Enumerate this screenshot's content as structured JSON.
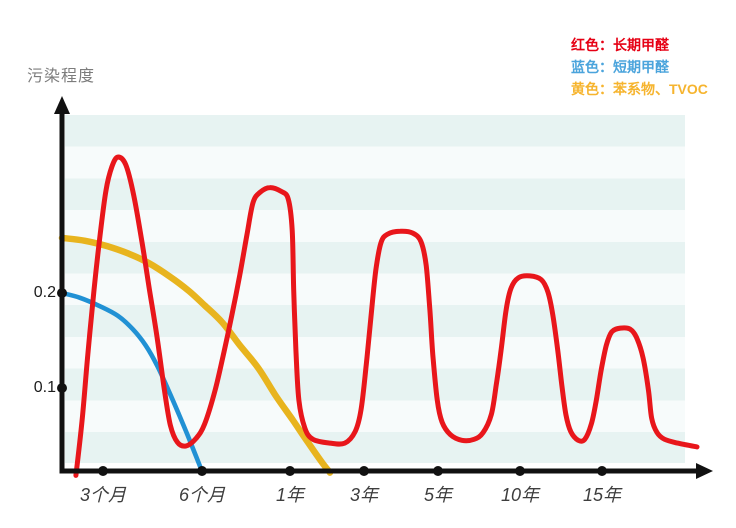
{
  "legend": {
    "items": [
      {
        "name": "long-term-formaldehyde",
        "label": "红色：长期甲醛",
        "color": "#e60014"
      },
      {
        "name": "short-term-formaldehyde",
        "label": "蓝色：短期甲醛",
        "color": "#4ba4dc"
      },
      {
        "name": "benzene-tvoc",
        "label": "黄色：苯系物、TVOC",
        "color": "#f6b42e"
      }
    ]
  },
  "chart_data": {
    "type": "line",
    "title": "",
    "xlabel": "",
    "ylabel": "污染程度",
    "ylim": [
      0,
      0.4
    ],
    "grid": "horizontal-stripes",
    "legend_position": "top-right",
    "axis_color": "#111111",
    "stripe_colors": [
      "#e7f3f2",
      "#f7fbfb"
    ],
    "y_ticks": [
      {
        "label": "0.2",
        "value": 0.2
      },
      {
        "label": "0.1",
        "value": 0.1
      }
    ],
    "x_ticks": [
      {
        "label": "3个月",
        "t": 1
      },
      {
        "label": "6个月",
        "t": 2
      },
      {
        "label": "1年",
        "t": 3
      },
      {
        "label": "3年",
        "t": 4
      },
      {
        "label": "5年",
        "t": 5
      },
      {
        "label": "10年",
        "t": 6
      },
      {
        "label": "15年",
        "t": 7
      }
    ],
    "series": [
      {
        "name": "苯系物、TVOC",
        "color": "#e8b41e",
        "stroke_width": 6.5,
        "points": [
          [
            0,
            0.258
          ],
          [
            0.56,
            0.255
          ],
          [
            1.05,
            0.249
          ],
          [
            1.27,
            0.241
          ],
          [
            1.47,
            0.231
          ],
          [
            1.68,
            0.217
          ],
          [
            1.87,
            0.202
          ],
          [
            2.03,
            0.187
          ],
          [
            2.23,
            0.169
          ],
          [
            2.43,
            0.145
          ],
          [
            2.64,
            0.121
          ],
          [
            2.83,
            0.093
          ],
          [
            3.04,
            0.066
          ],
          [
            3.24,
            0.043
          ],
          [
            3.43,
            0.022
          ],
          [
            3.54,
            0.011
          ]
        ]
      },
      {
        "name": "短期甲醛",
        "color": "#2191d4",
        "stroke_width": 4.6,
        "points": [
          [
            0,
            0.2
          ],
          [
            0.44,
            0.195
          ],
          [
            0.93,
            0.186
          ],
          [
            1.15,
            0.176
          ],
          [
            1.3,
            0.162
          ],
          [
            1.43,
            0.145
          ],
          [
            1.55,
            0.123
          ],
          [
            1.66,
            0.098
          ],
          [
            1.76,
            0.074
          ],
          [
            1.86,
            0.049
          ],
          [
            1.94,
            0.028
          ],
          [
            1.99,
            0.015
          ]
        ]
      },
      {
        "name": "长期甲醛",
        "color": "#e8161b",
        "stroke_width": 5,
        "points": [
          [
            0.34,
            0.008
          ],
          [
            0.49,
            0.066
          ],
          [
            0.63,
            0.135
          ],
          [
            0.78,
            0.203
          ],
          [
            0.93,
            0.261
          ],
          [
            1.03,
            0.308
          ],
          [
            1.09,
            0.333
          ],
          [
            1.15,
            0.343
          ],
          [
            1.23,
            0.335
          ],
          [
            1.31,
            0.303
          ],
          [
            1.39,
            0.256
          ],
          [
            1.47,
            0.203
          ],
          [
            1.55,
            0.151
          ],
          [
            1.62,
            0.098
          ],
          [
            1.68,
            0.061
          ],
          [
            1.75,
            0.043
          ],
          [
            1.84,
            0.039
          ],
          [
            1.94,
            0.047
          ],
          [
            2.03,
            0.062
          ],
          [
            2.15,
            0.098
          ],
          [
            2.25,
            0.138
          ],
          [
            2.34,
            0.177
          ],
          [
            2.43,
            0.219
          ],
          [
            2.51,
            0.261
          ],
          [
            2.58,
            0.295
          ],
          [
            2.66,
            0.306
          ],
          [
            2.77,
            0.311
          ],
          [
            2.9,
            0.307
          ],
          [
            2.98,
            0.299
          ],
          [
            3.03,
            0.266
          ],
          [
            3.05,
            0.203
          ],
          [
            3.08,
            0.14
          ],
          [
            3.12,
            0.087
          ],
          [
            3.2,
            0.058
          ],
          [
            3.31,
            0.046
          ],
          [
            3.54,
            0.042
          ],
          [
            3.74,
            0.042
          ],
          [
            3.88,
            0.054
          ],
          [
            3.96,
            0.077
          ],
          [
            4.03,
            0.124
          ],
          [
            4.09,
            0.172
          ],
          [
            4.16,
            0.224
          ],
          [
            4.23,
            0.253
          ],
          [
            4.32,
            0.262
          ],
          [
            4.49,
            0.265
          ],
          [
            4.66,
            0.263
          ],
          [
            4.77,
            0.254
          ],
          [
            4.84,
            0.229
          ],
          [
            4.89,
            0.182
          ],
          [
            4.93,
            0.135
          ],
          [
            4.99,
            0.087
          ],
          [
            5.05,
            0.064
          ],
          [
            5.15,
            0.051
          ],
          [
            5.29,
            0.045
          ],
          [
            5.44,
            0.046
          ],
          [
            5.55,
            0.053
          ],
          [
            5.65,
            0.072
          ],
          [
            5.71,
            0.103
          ],
          [
            5.77,
            0.14
          ],
          [
            5.83,
            0.182
          ],
          [
            5.89,
            0.205
          ],
          [
            5.98,
            0.216
          ],
          [
            6.12,
            0.218
          ],
          [
            6.26,
            0.214
          ],
          [
            6.34,
            0.201
          ],
          [
            6.4,
            0.177
          ],
          [
            6.46,
            0.14
          ],
          [
            6.51,
            0.103
          ],
          [
            6.56,
            0.072
          ],
          [
            6.62,
            0.054
          ],
          [
            6.71,
            0.045
          ],
          [
            6.79,
            0.046
          ],
          [
            6.87,
            0.062
          ],
          [
            6.93,
            0.087
          ],
          [
            6.99,
            0.119
          ],
          [
            7.04,
            0.145
          ],
          [
            7.09,
            0.159
          ],
          [
            7.17,
            0.163
          ],
          [
            7.26,
            0.162
          ],
          [
            7.32,
            0.153
          ],
          [
            7.38,
            0.132
          ],
          [
            7.43,
            0.098
          ],
          [
            7.46,
            0.068
          ],
          [
            7.51,
            0.053
          ],
          [
            7.58,
            0.046
          ],
          [
            7.7,
            0.042
          ],
          [
            7.88,
            0.038
          ]
        ]
      }
    ]
  }
}
